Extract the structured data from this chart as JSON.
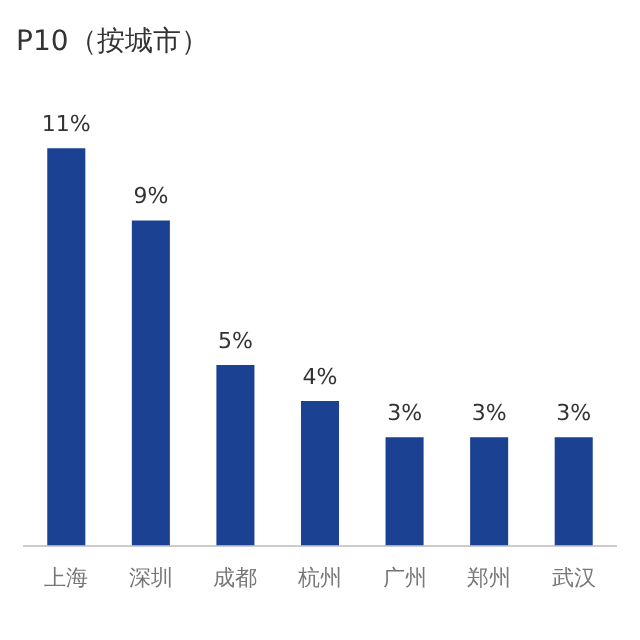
{
  "chart_data": {
    "type": "bar",
    "title": "P10（按城市）",
    "categories": [
      "上海",
      "深圳",
      "成都",
      "杭州",
      "广州",
      "郑州",
      "武汉"
    ],
    "values": [
      11,
      9,
      5,
      4,
      3,
      3,
      3
    ],
    "value_labels": [
      "11%",
      "9%",
      "5%",
      "4%",
      "3%",
      "3%",
      "3%"
    ],
    "color": "#1a4192"
  }
}
